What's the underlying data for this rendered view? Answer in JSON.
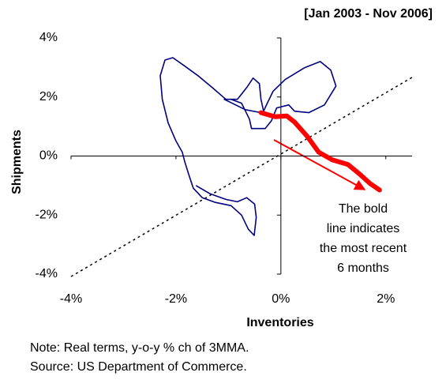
{
  "chart_data": {
    "type": "line",
    "title": "[Jan 2003 - Nov 2006]",
    "x_label": "Inventories",
    "y_label": "Shipments",
    "xlim": [
      -4,
      2.5
    ],
    "ylim": [
      -4,
      4
    ],
    "xticks": [
      {
        "value": -4,
        "label": "-4%"
      },
      {
        "value": -2,
        "label": "-2%"
      },
      {
        "value": 0,
        "label": "0%"
      },
      {
        "value": 2,
        "label": "2%"
      }
    ],
    "yticks": [
      {
        "value": -4,
        "label": "-4%"
      },
      {
        "value": -2,
        "label": "-2%"
      },
      {
        "value": 0,
        "label": "0%"
      },
      {
        "value": 2,
        "label": "2%"
      },
      {
        "value": 4,
        "label": "4%"
      }
    ],
    "grid": false,
    "series": [
      {
        "color": "#000080",
        "width": 1.6,
        "x": [
          -1.61,
          -1.35,
          -1.05,
          -0.83,
          -0.65,
          -0.5,
          -0.47,
          -0.51,
          -0.62,
          -0.75,
          -0.95,
          -1.25,
          -1.5,
          -1.67,
          -1.76,
          -1.83,
          -1.88,
          -2.0,
          -2.15,
          -2.26,
          -2.3,
          -2.21,
          -2.06,
          -1.85,
          -1.58,
          -1.31,
          -1.05,
          -0.83,
          -0.65,
          -0.53,
          -0.41,
          -0.38,
          -0.33,
          -0.26,
          -0.15,
          0.08,
          0.45,
          0.75,
          0.95,
          1.05,
          0.83,
          0.53,
          0.26,
          0.15,
          -0.08,
          -0.18,
          -0.3,
          -0.56,
          -0.6,
          -0.75,
          -0.95,
          -1.08,
          -0.68,
          -0.38
        ],
        "values": [
          -1.01,
          -1.28,
          -1.47,
          -1.55,
          -1.41,
          -1.63,
          -2.08,
          -2.69,
          -2.48,
          -2.0,
          -1.68,
          -1.57,
          -1.41,
          -1.09,
          -0.61,
          -0.21,
          0.13,
          0.51,
          1.12,
          1.92,
          2.72,
          3.25,
          3.33,
          3.07,
          2.72,
          2.32,
          1.92,
          1.92,
          2.32,
          2.64,
          2.45,
          1.92,
          1.52,
          1.79,
          2.19,
          2.59,
          2.99,
          3.2,
          2.91,
          2.37,
          1.73,
          1.47,
          1.52,
          1.73,
          1.63,
          1.2,
          0.93,
          0.93,
          1.25,
          1.79,
          1.92,
          1.92,
          1.57,
          1.47
        ]
      },
      {
        "color": "#ff0000",
        "width": 6,
        "x": [
          -0.38,
          -0.11,
          0.11,
          0.26,
          0.5,
          0.72,
          0.98,
          1.28,
          1.5,
          1.7,
          1.88
        ],
        "values": [
          1.47,
          1.33,
          1.36,
          1.15,
          0.67,
          0.13,
          -0.13,
          -0.29,
          -0.61,
          -0.93,
          -1.15
        ]
      }
    ],
    "annotation": [
      "The bold",
      "line indicates",
      "the most recent",
      "6 months"
    ],
    "notes": [
      "Note: Real terms, y-o-y % ch of 3MMA.",
      "Source: US Department of Commerce."
    ]
  }
}
